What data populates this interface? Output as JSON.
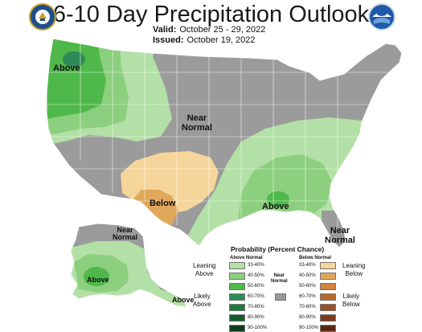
{
  "header": {
    "title": "6-10 Day Precipitation Outlook",
    "valid_label": "Valid:",
    "valid_value": "October 25 - 29, 2022",
    "issued_label": "Issued:",
    "issued_value": "October 19, 2022"
  },
  "logos": {
    "left": "doc-seal-icon",
    "right": "noaa-logo-icon"
  },
  "map_labels": {
    "above_nw": "Above",
    "near_normal_center": "Near\nNormal",
    "below_sw": "Below",
    "above_se": "Above",
    "near_normal_fl": "Near\nNormal",
    "near_normal_ak": "Near\nNormal",
    "above_ak": "Above",
    "above_ak_tail": "Above"
  },
  "legend": {
    "title": "Probability (Percent Chance)",
    "above_header": "Above Normal",
    "below_header": "Below Normal",
    "near_label": "Near\nNormal",
    "above_ranges": [
      "33-40%",
      "40-50%",
      "50-60%",
      "60-70%",
      "70-80%",
      "80-90%",
      "90-100%"
    ],
    "below_ranges": [
      "33-40%",
      "40-50%",
      "50-60%",
      "60-70%",
      "70-80%",
      "80-90%",
      "90-100%"
    ],
    "leaning_above": "Leaning\nAbove",
    "likely_above": "Likely\nAbove",
    "leaning_below": "Leaning\nBelow",
    "likely_below": "Likely\nBelow",
    "above_colors": [
      "#b3e0a6",
      "#8ccf7e",
      "#4fb84a",
      "#2e8b57",
      "#1e7a3a",
      "#165c2c",
      "#0d3d1d"
    ],
    "below_colors": [
      "#f5d59a",
      "#e0a85a",
      "#d0843d",
      "#b8692e",
      "#9c4f22",
      "#7d3a18",
      "#5a2a10"
    ],
    "near_color": "#999999"
  },
  "colors": {
    "near_normal": "#9b9b9b",
    "above_33": "#b3e0a6",
    "above_40": "#8ccf7e",
    "above_50": "#4fb84a",
    "above_60": "#2e8b57",
    "below_33": "#f5d59a",
    "below_40": "#e0a85a",
    "water": "#ffffff",
    "border": "#ffffff"
  }
}
